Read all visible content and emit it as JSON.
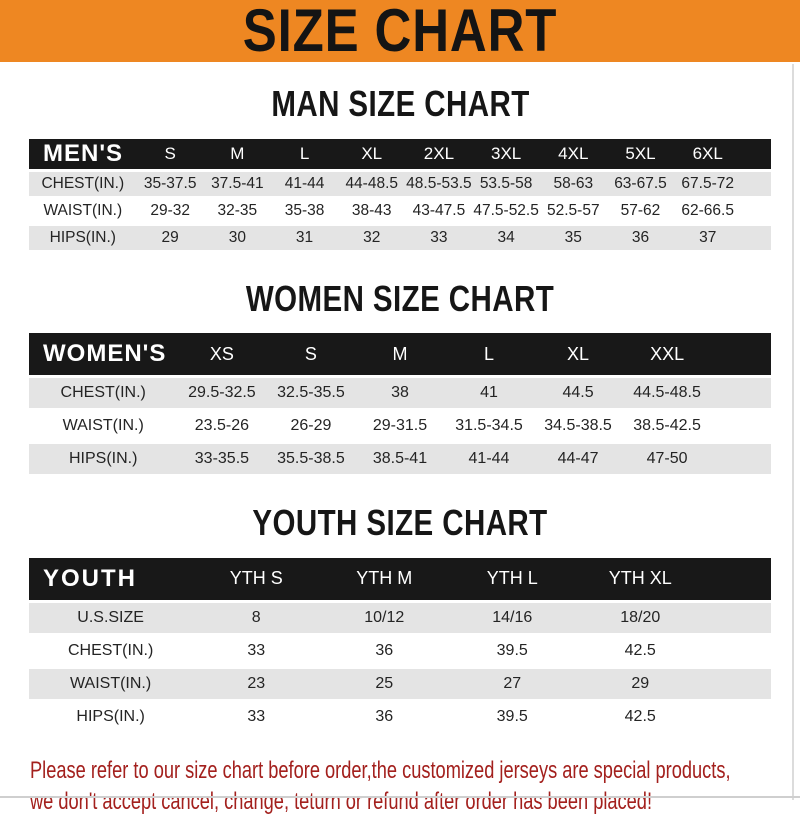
{
  "banner": {
    "title": "SIZE CHART"
  },
  "colors": {
    "banner_orange": "#EE8722",
    "header_black": "#181818",
    "row_gray": "#E4E4E4",
    "note_red": "#A3201D"
  },
  "sections": [
    {
      "heading": "MAN SIZE CHART",
      "table": {
        "header_label": "MEN'S",
        "columns": [
          "S",
          "M",
          "L",
          "XL",
          "2XL",
          "3XL",
          "4XL",
          "5XL",
          "6XL"
        ],
        "rows": [
          {
            "label": "CHEST(IN.)",
            "values": [
              "35-37.5",
              "37.5-41",
              "41-44",
              "44-48.5",
              "48.5-53.5",
              "53.5-58",
              "58-63",
              "63-67.5",
              "67.5-72"
            ]
          },
          {
            "label": "WAIST(IN.)",
            "values": [
              "29-32",
              "32-35",
              "35-38",
              "38-43",
              "43-47.5",
              "47.5-52.5",
              "52.5-57",
              "57-62",
              "62-66.5"
            ]
          },
          {
            "label": "HIPS(IN.)",
            "values": [
              "29",
              "30",
              "31",
              "32",
              "33",
              "34",
              "35",
              "36",
              "37"
            ]
          }
        ]
      }
    },
    {
      "heading": "WOMEN SIZE CHART",
      "table": {
        "header_label": "WOMEN'S",
        "columns": [
          "XS",
          "S",
          "M",
          "L",
          "XL",
          "XXL"
        ],
        "rows": [
          {
            "label": "CHEST(IN.)",
            "values": [
              "29.5-32.5",
              "32.5-35.5",
              "38",
              "41",
              "44.5",
              "44.5-48.5"
            ]
          },
          {
            "label": "WAIST(IN.)",
            "values": [
              "23.5-26",
              "26-29",
              "29-31.5",
              "31.5-34.5",
              "34.5-38.5",
              "38.5-42.5"
            ]
          },
          {
            "label": "HIPS(IN.)",
            "values": [
              "33-35.5",
              "35.5-38.5",
              "38.5-41",
              "41-44",
              "44-47",
              "47-50"
            ]
          }
        ]
      }
    },
    {
      "heading": "YOUTH SIZE CHART",
      "table": {
        "header_label": "YOUTH",
        "columns": [
          "YTH S",
          "YTH M",
          "YTH L",
          "YTH XL"
        ],
        "rows": [
          {
            "label": "U.S.SIZE",
            "values": [
              "8",
              "10/12",
              "14/16",
              "18/20"
            ]
          },
          {
            "label": "CHEST(IN.)",
            "values": [
              "33",
              "36",
              "39.5",
              "42.5"
            ]
          },
          {
            "label": "WAIST(IN.)",
            "values": [
              "23",
              "25",
              "27",
              "29"
            ]
          },
          {
            "label": "HIPS(IN.)",
            "values": [
              "33",
              "36",
              "39.5",
              "42.5"
            ]
          }
        ]
      }
    }
  ],
  "note": {
    "line1": "Please refer to our size chart before order,the customized jerseys are special products,",
    "line2": "we don't accept cancel, change, teturn or refund after order has been placed!"
  }
}
